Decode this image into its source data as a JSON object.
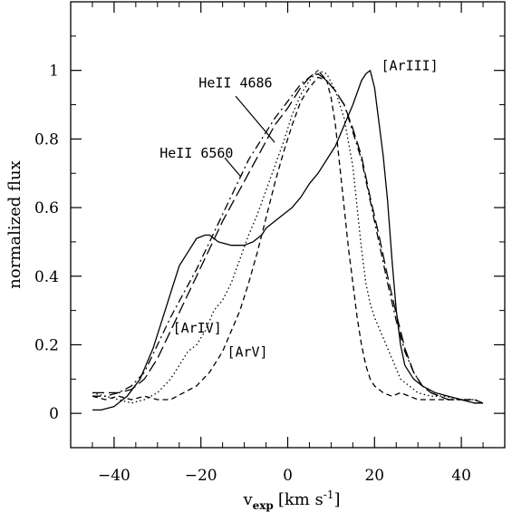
{
  "chart_data": {
    "type": "line",
    "title": "",
    "xlabel": {
      "main": "v",
      "sub": "exp",
      "unit": "[km s",
      "exp": "-1",
      "close": "]"
    },
    "ylabel": "normalized flux",
    "xlim": [
      -50,
      50
    ],
    "ylim": [
      -0.1,
      1.2
    ],
    "xticks": [
      -40,
      -20,
      0,
      20,
      40
    ],
    "xtick_labels": [
      "−40",
      "−20",
      "0",
      "20",
      "40"
    ],
    "yticks": [
      0,
      0.2,
      0.4,
      0.6,
      0.8,
      1
    ],
    "ytick_labels": [
      "0",
      "0.2",
      "0.4",
      "0.6",
      "0.8",
      "1"
    ],
    "grid": false,
    "series": [
      {
        "name": "[ArIII]",
        "style": "solid",
        "x": [
          -45,
          -43,
          -40,
          -37,
          -34,
          -31,
          -28,
          -25,
          -23,
          -21,
          -19,
          -18,
          -16,
          -13,
          -10,
          -8,
          -6,
          -5,
          -4,
          -3,
          -1,
          1,
          3,
          5,
          7,
          9,
          11,
          13,
          15,
          17,
          18,
          19,
          20,
          21,
          22,
          23,
          24,
          25,
          26,
          27,
          29,
          31,
          34,
          37,
          40,
          43,
          45
        ],
        "y": [
          0.01,
          0.01,
          0.02,
          0.05,
          0.1,
          0.19,
          0.31,
          0.43,
          0.47,
          0.51,
          0.52,
          0.52,
          0.5,
          0.49,
          0.49,
          0.5,
          0.52,
          0.54,
          0.55,
          0.56,
          0.58,
          0.6,
          0.63,
          0.67,
          0.7,
          0.74,
          0.78,
          0.84,
          0.9,
          0.97,
          0.99,
          1.0,
          0.95,
          0.85,
          0.75,
          0.62,
          0.45,
          0.3,
          0.2,
          0.14,
          0.1,
          0.08,
          0.06,
          0.05,
          0.04,
          0.03,
          0.03
        ]
      },
      {
        "name": "HeII 4686",
        "style": "dashdot",
        "x": [
          -45,
          -42,
          -39,
          -36,
          -33,
          -30,
          -27,
          -24,
          -21,
          -18,
          -15,
          -12,
          -9,
          -6,
          -3,
          0,
          3,
          5,
          7,
          9,
          11,
          13,
          15,
          17,
          19,
          21,
          23,
          25,
          27,
          29,
          31,
          33,
          35,
          37,
          40,
          43,
          45
        ],
        "y": [
          0.05,
          0.05,
          0.06,
          0.08,
          0.12,
          0.2,
          0.28,
          0.35,
          0.42,
          0.5,
          0.58,
          0.66,
          0.74,
          0.8,
          0.86,
          0.91,
          0.96,
          0.98,
          1.0,
          0.97,
          0.94,
          0.9,
          0.82,
          0.74,
          0.62,
          0.5,
          0.38,
          0.27,
          0.18,
          0.12,
          0.08,
          0.06,
          0.05,
          0.04,
          0.04,
          0.04,
          0.03
        ]
      },
      {
        "name": "HeII 6560",
        "style": "longdash",
        "x": [
          -45,
          -42,
          -39,
          -36,
          -33,
          -30,
          -27,
          -24,
          -21,
          -18,
          -15,
          -12,
          -9,
          -6,
          -3,
          0,
          3,
          5,
          7,
          9,
          11,
          13,
          15,
          17,
          19,
          21,
          23,
          25,
          27,
          29,
          31,
          33,
          35,
          37,
          40,
          43,
          45
        ],
        "y": [
          0.06,
          0.06,
          0.06,
          0.07,
          0.1,
          0.16,
          0.24,
          0.32,
          0.4,
          0.48,
          0.56,
          0.63,
          0.7,
          0.77,
          0.84,
          0.89,
          0.95,
          0.98,
          0.99,
          0.97,
          0.94,
          0.9,
          0.83,
          0.75,
          0.63,
          0.52,
          0.4,
          0.29,
          0.19,
          0.12,
          0.08,
          0.06,
          0.05,
          0.04,
          0.04,
          0.03,
          0.03
        ]
      },
      {
        "name": "[ArIV]",
        "style": "dotted",
        "x": [
          -45,
          -42,
          -39,
          -36,
          -33,
          -30,
          -27,
          -25,
          -23,
          -21,
          -19,
          -17,
          -15,
          -13,
          -11,
          -9,
          -7,
          -5,
          -3,
          -1,
          1,
          3,
          5,
          7,
          9,
          11,
          13,
          15,
          16,
          17,
          18,
          19,
          20,
          22,
          24,
          26,
          28,
          30,
          33,
          36,
          40,
          43,
          45
        ],
        "y": [
          0.06,
          0.05,
          0.04,
          0.03,
          0.04,
          0.06,
          0.1,
          0.14,
          0.18,
          0.2,
          0.24,
          0.3,
          0.33,
          0.38,
          0.45,
          0.52,
          0.58,
          0.65,
          0.72,
          0.79,
          0.87,
          0.93,
          0.97,
          1.0,
          0.99,
          0.94,
          0.86,
          0.72,
          0.6,
          0.48,
          0.38,
          0.32,
          0.28,
          0.22,
          0.16,
          0.1,
          0.08,
          0.06,
          0.05,
          0.05,
          0.04,
          0.04,
          0.03
        ]
      },
      {
        "name": "[ArV]",
        "style": "dashed",
        "x": [
          -45,
          -42,
          -39,
          -36,
          -33,
          -30,
          -27,
          -24,
          -21,
          -18,
          -15,
          -13,
          -11,
          -9,
          -7,
          -5,
          -3,
          -1,
          1,
          3,
          5,
          7,
          9,
          10,
          11,
          12,
          13,
          14,
          15,
          16,
          17,
          18,
          19,
          20,
          22,
          24,
          26,
          28,
          30,
          33,
          36,
          40,
          43,
          45
        ],
        "y": [
          0.05,
          0.04,
          0.05,
          0.04,
          0.05,
          0.04,
          0.04,
          0.06,
          0.08,
          0.12,
          0.18,
          0.24,
          0.3,
          0.38,
          0.47,
          0.57,
          0.67,
          0.76,
          0.84,
          0.91,
          0.95,
          0.98,
          0.97,
          0.92,
          0.84,
          0.72,
          0.6,
          0.48,
          0.38,
          0.28,
          0.2,
          0.14,
          0.1,
          0.08,
          0.06,
          0.05,
          0.06,
          0.05,
          0.04,
          0.04,
          0.04,
          0.04,
          0.04,
          0.03
        ]
      }
    ],
    "annotations": [
      {
        "text": "[ArIII]",
        "x": 21.5,
        "y": 1.0
      },
      {
        "text": "HeII 4686",
        "x": -20.5,
        "y": 0.95
      },
      {
        "text": "HeII 6560",
        "x": -29.5,
        "y": 0.745
      },
      {
        "text": "[ArIV]",
        "x": -26.5,
        "y": 0.235
      },
      {
        "text": "[ArV]",
        "x": -14,
        "y": 0.165
      }
    ]
  }
}
